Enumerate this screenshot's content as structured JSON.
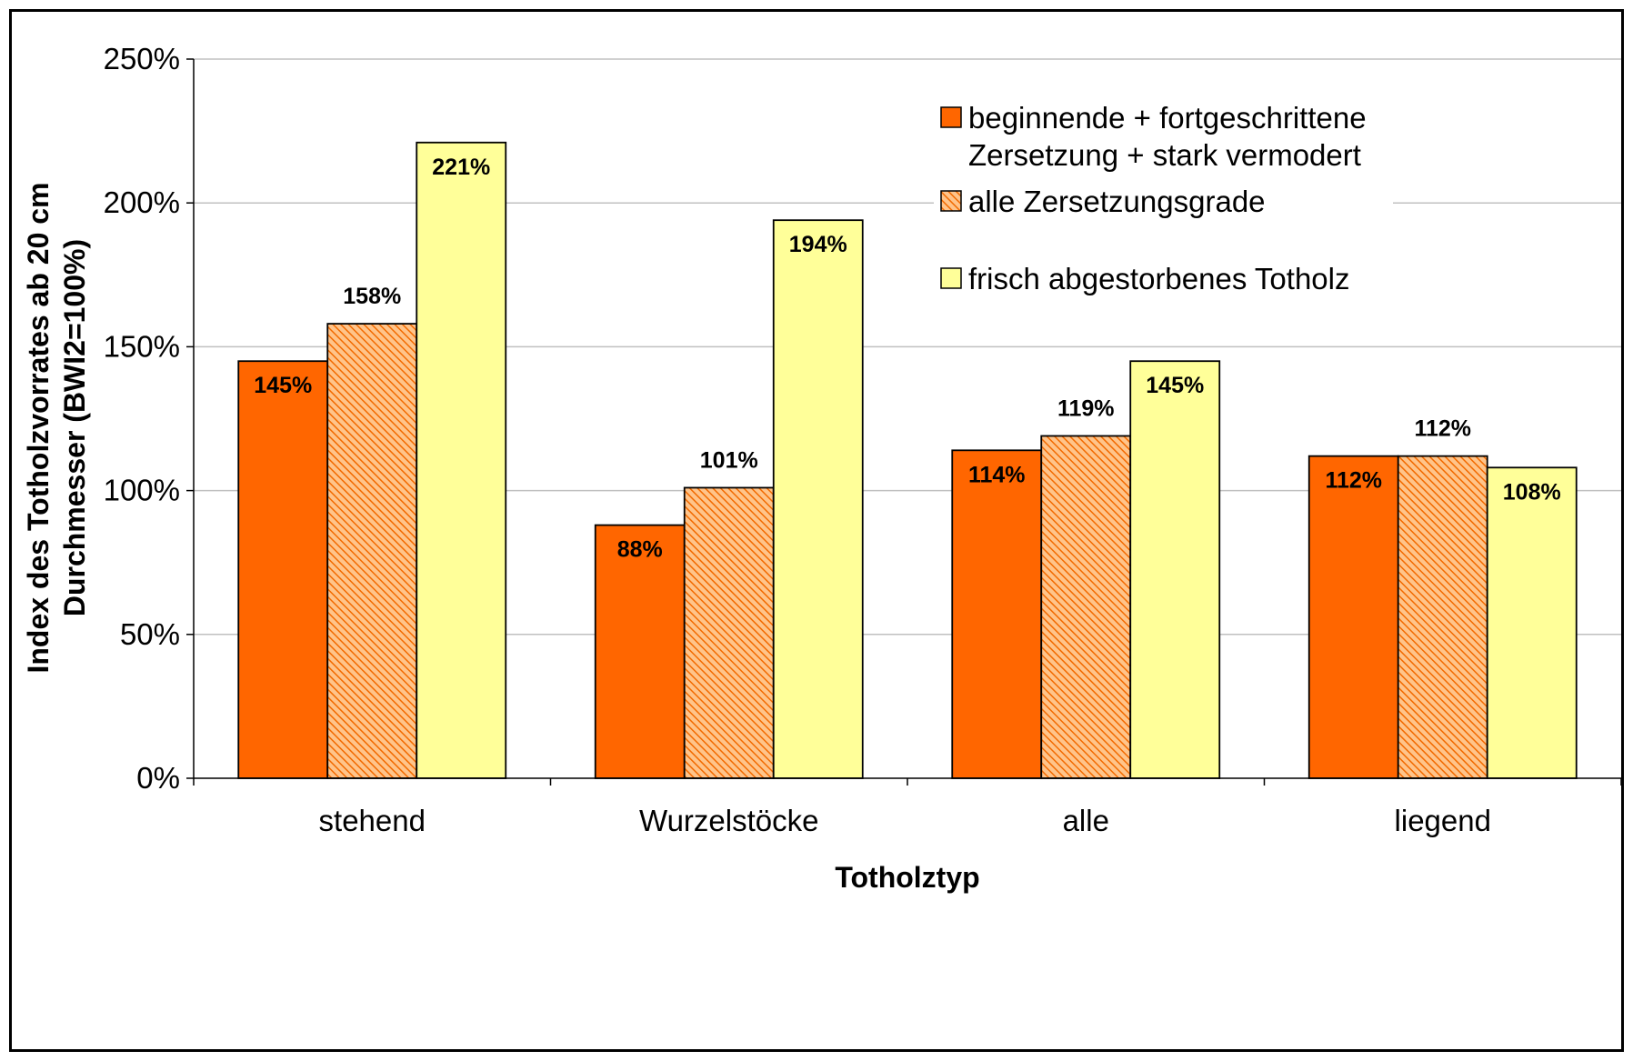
{
  "chart_data": {
    "type": "bar",
    "title": "",
    "xlabel": "Totholztyp",
    "ylabel_lines": [
      "Index des Totholzvorrates ab 20 cm",
      "Durchmesser (BWI2=100%)"
    ],
    "categories": [
      "stehend",
      "Wurzelstöcke",
      "alle",
      "liegend"
    ],
    "ylim": [
      0,
      250
    ],
    "yticks": [
      0,
      50,
      100,
      150,
      200,
      250
    ],
    "ytick_labels": [
      "0%",
      "50%",
      "100%",
      "150%",
      "200%",
      "250%"
    ],
    "grid": true,
    "legend_position": "top-right",
    "series": [
      {
        "name": "beginnende + fortgeschrittene Zersetzung + stark vermodert",
        "legend_lines": [
          "beginnende + fortgeschrittene",
          "Zersetzung + stark vermodert"
        ],
        "values": [
          145,
          88,
          114,
          112
        ],
        "labels": [
          "145%",
          "88%",
          "114%",
          "112%"
        ],
        "color": "#ff6600",
        "pattern": "solid"
      },
      {
        "name": "alle Zersetzungsgrade",
        "legend_lines": [
          "alle Zersetzungsgrade"
        ],
        "values": [
          158,
          101,
          119,
          112
        ],
        "labels": [
          "158%",
          "101%",
          "119%",
          "112%"
        ],
        "color": "#ff6600",
        "pattern": "hatched"
      },
      {
        "name": "frisch abgestorbenes Totholz",
        "legend_lines": [
          "frisch abgestorbenes Totholz"
        ],
        "values": [
          221,
          194,
          145,
          108
        ],
        "labels": [
          "221%",
          "194%",
          "145%",
          "108%"
        ],
        "color": "#ffff99",
        "pattern": "solid"
      }
    ]
  }
}
